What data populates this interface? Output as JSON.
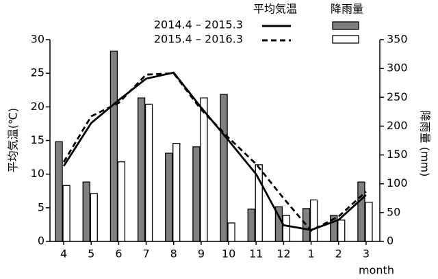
{
  "chart_data": {
    "type": "bar-line",
    "y_label": "平均気温(℃)",
    "y2_label": "降雨量 (mm)",
    "x_label": "month",
    "legend_headers": [
      "平均気温",
      "降雨量"
    ],
    "categories": [
      "4",
      "5",
      "6",
      "7",
      "8",
      "9",
      "10",
      "11",
      "12",
      "1",
      "2",
      "3"
    ],
    "ylim": [
      0,
      30
    ],
    "yticks": [
      0,
      5,
      10,
      15,
      20,
      25,
      30
    ],
    "y2lim": [
      0,
      350
    ],
    "y2ticks": [
      0,
      50,
      100,
      150,
      200,
      250,
      300,
      350
    ],
    "series": [
      {
        "type": "bar",
        "axis": "y2",
        "color": "#808080",
        "values": [
          173,
          103,
          330,
          249,
          153,
          164,
          255,
          56,
          60,
          57,
          45,
          103
        ]
      },
      {
        "type": "bar",
        "axis": "y2",
        "color": "#ffffff",
        "values": [
          97,
          83,
          138,
          238,
          170,
          249,
          32,
          133,
          45,
          72,
          37,
          68
        ]
      },
      {
        "type": "line",
        "name": "2014.4 – 2015.3",
        "color": "#000000",
        "dash": "solid",
        "values": [
          11.2,
          17.6,
          21,
          24.2,
          25.1,
          19.9,
          15,
          10,
          2.4,
          1.7,
          3.2,
          6.9
        ]
      },
      {
        "type": "line",
        "name": "2015.4 – 2016.3",
        "color": "#000000",
        "dash": "dashed",
        "values": [
          11.8,
          18.6,
          20.6,
          24.8,
          25,
          19.6,
          15.4,
          11.5,
          6.4,
          1.6,
          3.7,
          7.4
        ]
      }
    ]
  }
}
